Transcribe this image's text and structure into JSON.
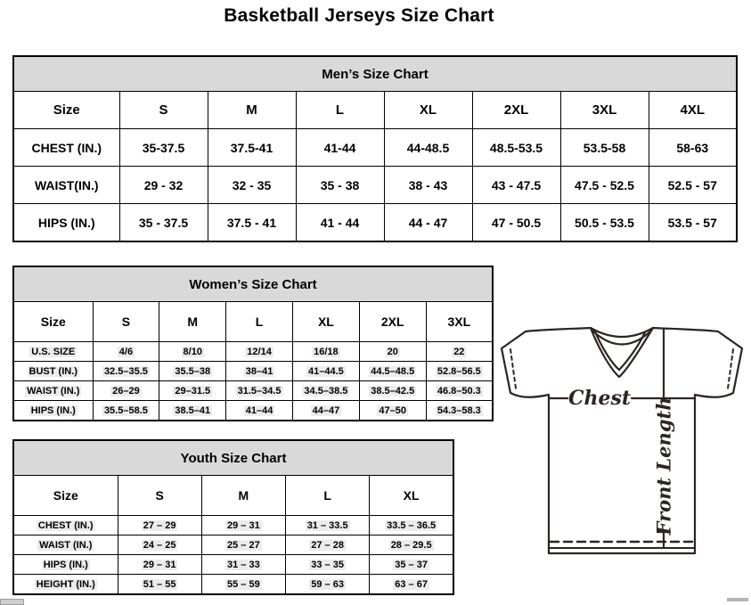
{
  "page": {
    "title": "Basketball Jerseys Size Chart"
  },
  "colors": {
    "table_header_bg": "#d9d9d9",
    "table_border": "#000000",
    "diagram_ink": "#2b2523",
    "cell_shading": "#ececec"
  },
  "tables": {
    "men": {
      "title": "Men’s Size Chart",
      "header": [
        "Size",
        "S",
        "M",
        "L",
        "XL",
        "2XL",
        "3XL",
        "4XL"
      ],
      "rows": [
        {
          "label": "CHEST (IN.)",
          "values": [
            "35-37.5",
            "37.5-41",
            "41-44",
            "44-48.5",
            "48.5-53.5",
            "53.5-58",
            "58-63"
          ]
        },
        {
          "label": "WAIST(IN.)",
          "values": [
            "29 - 32",
            "32 - 35",
            "35 - 38",
            "38 - 43",
            "43 - 47.5",
            "47.5 - 52.5",
            "52.5 - 57"
          ]
        },
        {
          "label": "HIPS (IN.)",
          "values": [
            "35 - 37.5",
            "37.5 - 41",
            "41 - 44",
            "44 - 47",
            "47 - 50.5",
            "50.5 - 53.5",
            "53.5 - 57"
          ]
        }
      ],
      "highlight": false
    },
    "women": {
      "title": "Women’s Size Chart",
      "header": [
        "Size",
        "S",
        "M",
        "L",
        "XL",
        "2XL",
        "3XL"
      ],
      "rows": [
        {
          "label": "U.S. SIZE",
          "values": [
            "4/6",
            "8/10",
            "12/14",
            "16/18",
            "20",
            "22"
          ]
        },
        {
          "label": "BUST (IN.)",
          "values": [
            "32.5–35.5",
            "35.5–38",
            "38–41",
            "41–44.5",
            "44.5–48.5",
            "52.8–56.5"
          ]
        },
        {
          "label": "WAIST (IN.)",
          "values": [
            "26–29",
            "29–31.5",
            "31.5–34.5",
            "34.5–38.5",
            "38.5–42.5",
            "46.8–50.3"
          ]
        },
        {
          "label": "HIPS (IN.)",
          "values": [
            "35.5–58.5",
            "38.5–41",
            "41–44",
            "44–47",
            "47–50",
            "54.3–58.3"
          ]
        }
      ],
      "highlight": true
    },
    "youth": {
      "title": "Youth Size Chart",
      "header": [
        "Size",
        "S",
        "M",
        "L",
        "XL"
      ],
      "rows": [
        {
          "label": "CHEST (IN.)",
          "values": [
            "27 – 29",
            "29 – 31",
            "31 – 33.5",
            "33.5 – 36.5"
          ]
        },
        {
          "label": "WAIST (IN.)",
          "values": [
            "24 – 25",
            "25 – 27",
            "27 – 28",
            "28 – 29.5"
          ]
        },
        {
          "label": "HIPS (IN.)",
          "values": [
            "29 – 31",
            "31 – 33",
            "33 – 35",
            "35 – 37"
          ]
        },
        {
          "label": "HEIGHT (IN.)",
          "values": [
            "51 – 55",
            "55 – 59",
            "59 – 63",
            "63 – 67"
          ]
        }
      ],
      "highlight": true
    }
  },
  "diagram": {
    "chest_label": "Chest",
    "front_length_label": "Front Length"
  }
}
